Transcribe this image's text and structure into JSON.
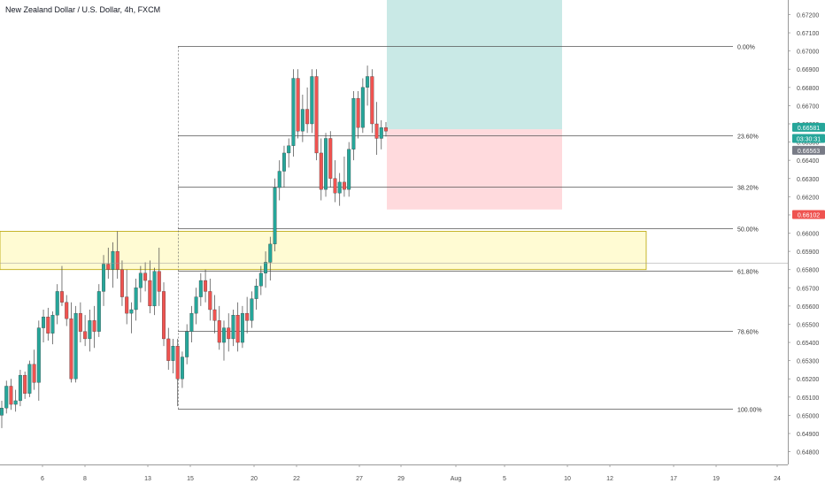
{
  "title": "New Zealand Dollar / U.S. Dollar, 4h, FXCM",
  "colors": {
    "up": "#26a69a",
    "down": "#ef5350",
    "fib_line": "#555555",
    "zone_fill": "#fff9c4",
    "zone_stroke": "#b8a400",
    "profit_fill": "#b2dfdb",
    "loss_fill": "#ffcdd2",
    "badge_green": "#26a69a",
    "badge_gray": "#787b86",
    "badge_red": "#ef5350",
    "axis_text": "#4a4a4a"
  },
  "chart_data": {
    "type": "candlestick",
    "symbol": "NZDUSD",
    "timeframe": "4h",
    "ylim": [
      0.6473,
      0.6728
    ],
    "y_ticks": [
      "0.67200",
      "0.67100",
      "0.67000",
      "0.66900",
      "0.66800",
      "0.66700",
      "0.66600",
      "0.66500",
      "0.66400",
      "0.66300",
      "0.66200",
      "0.66100",
      "0.66000",
      "0.65900",
      "0.65800",
      "0.65700",
      "0.65600",
      "0.65500",
      "0.65400",
      "0.65300",
      "0.65200",
      "0.65100",
      "0.65000",
      "0.64900",
      "0.64800"
    ],
    "x_ticks": [
      "6",
      "8",
      "13",
      "15",
      "20",
      "22",
      "27",
      "29",
      "Aug",
      "5",
      "10",
      "12",
      "17",
      "19",
      "24"
    ],
    "fib_levels": [
      {
        "label": "0.00%",
        "price": 0.67025
      },
      {
        "label": "23.60%",
        "price": 0.66535
      },
      {
        "label": "38.20%",
        "price": 0.66255
      },
      {
        "label": "50.00%",
        "price": 0.66025
      },
      {
        "label": "61.80%",
        "price": 0.65795
      },
      {
        "label": "78.60%",
        "price": 0.65465
      },
      {
        "label": "100.00%",
        "price": 0.65035
      }
    ],
    "zone": {
      "top": 0.6601,
      "bottom": 0.658
    },
    "position": {
      "target": 0.67335,
      "entry": 0.6657,
      "stop": 0.6613
    },
    "badges": [
      {
        "text": "0.66581",
        "kind": "green",
        "price": 0.66581
      },
      {
        "text": "03:30:31",
        "kind": "green",
        "price": 0.6652
      },
      {
        "text": "0.66563",
        "kind": "gray",
        "price": 0.66455
      },
      {
        "text": "0.66102",
        "kind": "red",
        "price": 0.66102
      }
    ],
    "candles": [
      {
        "o": 0.65,
        "h": 0.6508,
        "l": 0.6493,
        "c": 0.6504
      },
      {
        "o": 0.6504,
        "h": 0.6519,
        "l": 0.6501,
        "c": 0.6516
      },
      {
        "o": 0.6516,
        "h": 0.652,
        "l": 0.6503,
        "c": 0.6506
      },
      {
        "o": 0.6506,
        "h": 0.6514,
        "l": 0.6502,
        "c": 0.6508
      },
      {
        "o": 0.6508,
        "h": 0.6525,
        "l": 0.6505,
        "c": 0.6522
      },
      {
        "o": 0.6522,
        "h": 0.6524,
        "l": 0.6509,
        "c": 0.6512
      },
      {
        "o": 0.6512,
        "h": 0.653,
        "l": 0.651,
        "c": 0.6528
      },
      {
        "o": 0.6528,
        "h": 0.6536,
        "l": 0.6514,
        "c": 0.6518
      },
      {
        "o": 0.6518,
        "h": 0.6552,
        "l": 0.6508,
        "c": 0.6548
      },
      {
        "o": 0.6548,
        "h": 0.6558,
        "l": 0.654,
        "c": 0.6554
      },
      {
        "o": 0.6554,
        "h": 0.6559,
        "l": 0.6541,
        "c": 0.6545
      },
      {
        "o": 0.6545,
        "h": 0.6557,
        "l": 0.6539,
        "c": 0.6555
      },
      {
        "o": 0.6555,
        "h": 0.6572,
        "l": 0.655,
        "c": 0.6568
      },
      {
        "o": 0.6568,
        "h": 0.6582,
        "l": 0.656,
        "c": 0.6562
      },
      {
        "o": 0.6562,
        "h": 0.6566,
        "l": 0.6549,
        "c": 0.6553
      },
      {
        "o": 0.6553,
        "h": 0.6562,
        "l": 0.6518,
        "c": 0.652
      },
      {
        "o": 0.652,
        "h": 0.656,
        "l": 0.6518,
        "c": 0.6556
      },
      {
        "o": 0.6556,
        "h": 0.6562,
        "l": 0.654,
        "c": 0.6546
      },
      {
        "o": 0.6546,
        "h": 0.6555,
        "l": 0.6538,
        "c": 0.6542
      },
      {
        "o": 0.6542,
        "h": 0.6558,
        "l": 0.6535,
        "c": 0.6552
      },
      {
        "o": 0.6552,
        "h": 0.656,
        "l": 0.6537,
        "c": 0.6546
      },
      {
        "o": 0.6546,
        "h": 0.6572,
        "l": 0.6543,
        "c": 0.6568
      },
      {
        "o": 0.6568,
        "h": 0.6588,
        "l": 0.656,
        "c": 0.6583
      },
      {
        "o": 0.6583,
        "h": 0.6592,
        "l": 0.6575,
        "c": 0.658
      },
      {
        "o": 0.658,
        "h": 0.6595,
        "l": 0.657,
        "c": 0.659
      },
      {
        "o": 0.659,
        "h": 0.6601,
        "l": 0.6575,
        "c": 0.658
      },
      {
        "o": 0.658,
        "h": 0.6585,
        "l": 0.656,
        "c": 0.6565
      },
      {
        "o": 0.6565,
        "h": 0.658,
        "l": 0.655,
        "c": 0.6556
      },
      {
        "o": 0.6556,
        "h": 0.6562,
        "l": 0.6545,
        "c": 0.6558
      },
      {
        "o": 0.6558,
        "h": 0.6575,
        "l": 0.6552,
        "c": 0.657
      },
      {
        "o": 0.657,
        "h": 0.6582,
        "l": 0.6562,
        "c": 0.6578
      },
      {
        "o": 0.6578,
        "h": 0.6584,
        "l": 0.6568,
        "c": 0.6574
      },
      {
        "o": 0.6574,
        "h": 0.6585,
        "l": 0.6556,
        "c": 0.656
      },
      {
        "o": 0.656,
        "h": 0.6581,
        "l": 0.6555,
        "c": 0.6579
      },
      {
        "o": 0.6579,
        "h": 0.6592,
        "l": 0.656,
        "c": 0.6568
      },
      {
        "o": 0.6568,
        "h": 0.6573,
        "l": 0.6538,
        "c": 0.6542
      },
      {
        "o": 0.6542,
        "h": 0.6548,
        "l": 0.6525,
        "c": 0.653
      },
      {
        "o": 0.653,
        "h": 0.6542,
        "l": 0.6523,
        "c": 0.6538
      },
      {
        "o": 0.6538,
        "h": 0.6542,
        "l": 0.6505,
        "c": 0.652
      },
      {
        "o": 0.652,
        "h": 0.6535,
        "l": 0.6515,
        "c": 0.6532
      },
      {
        "o": 0.6532,
        "h": 0.655,
        "l": 0.6528,
        "c": 0.6546
      },
      {
        "o": 0.6546,
        "h": 0.656,
        "l": 0.654,
        "c": 0.6556
      },
      {
        "o": 0.6556,
        "h": 0.657,
        "l": 0.655,
        "c": 0.6565
      },
      {
        "o": 0.6565,
        "h": 0.6578,
        "l": 0.656,
        "c": 0.6574
      },
      {
        "o": 0.6574,
        "h": 0.658,
        "l": 0.6562,
        "c": 0.6568
      },
      {
        "o": 0.6568,
        "h": 0.6575,
        "l": 0.6552,
        "c": 0.6558
      },
      {
        "o": 0.6558,
        "h": 0.6566,
        "l": 0.6545,
        "c": 0.6552
      },
      {
        "o": 0.6552,
        "h": 0.656,
        "l": 0.6536,
        "c": 0.654
      },
      {
        "o": 0.654,
        "h": 0.6552,
        "l": 0.653,
        "c": 0.6548
      },
      {
        "o": 0.6548,
        "h": 0.6556,
        "l": 0.6535,
        "c": 0.6542
      },
      {
        "o": 0.6542,
        "h": 0.6558,
        "l": 0.6538,
        "c": 0.6555
      },
      {
        "o": 0.6555,
        "h": 0.6562,
        "l": 0.6535,
        "c": 0.654
      },
      {
        "o": 0.654,
        "h": 0.656,
        "l": 0.6537,
        "c": 0.6556
      },
      {
        "o": 0.6556,
        "h": 0.6565,
        "l": 0.6545,
        "c": 0.6552
      },
      {
        "o": 0.6552,
        "h": 0.6568,
        "l": 0.6548,
        "c": 0.6564
      },
      {
        "o": 0.6564,
        "h": 0.6575,
        "l": 0.6558,
        "c": 0.6571
      },
      {
        "o": 0.6571,
        "h": 0.6582,
        "l": 0.6566,
        "c": 0.6578
      },
      {
        "o": 0.6578,
        "h": 0.659,
        "l": 0.657,
        "c": 0.6584
      },
      {
        "o": 0.6584,
        "h": 0.6598,
        "l": 0.6574,
        "c": 0.6594
      },
      {
        "o": 0.6594,
        "h": 0.663,
        "l": 0.659,
        "c": 0.6625
      },
      {
        "o": 0.6625,
        "h": 0.664,
        "l": 0.6618,
        "c": 0.6634
      },
      {
        "o": 0.6634,
        "h": 0.6648,
        "l": 0.6625,
        "c": 0.6644
      },
      {
        "o": 0.6644,
        "h": 0.6652,
        "l": 0.6636,
        "c": 0.6648
      },
      {
        "o": 0.6648,
        "h": 0.669,
        "l": 0.6642,
        "c": 0.6685
      },
      {
        "o": 0.6685,
        "h": 0.669,
        "l": 0.6652,
        "c": 0.6656
      },
      {
        "o": 0.6656,
        "h": 0.6676,
        "l": 0.665,
        "c": 0.6668
      },
      {
        "o": 0.6668,
        "h": 0.668,
        "l": 0.6655,
        "c": 0.666
      },
      {
        "o": 0.666,
        "h": 0.669,
        "l": 0.6655,
        "c": 0.6686
      },
      {
        "o": 0.6686,
        "h": 0.669,
        "l": 0.664,
        "c": 0.6644
      },
      {
        "o": 0.6644,
        "h": 0.6652,
        "l": 0.6618,
        "c": 0.6624
      },
      {
        "o": 0.6624,
        "h": 0.6655,
        "l": 0.662,
        "c": 0.6652
      },
      {
        "o": 0.6652,
        "h": 0.6656,
        "l": 0.6625,
        "c": 0.663
      },
      {
        "o": 0.663,
        "h": 0.664,
        "l": 0.6617,
        "c": 0.6622
      },
      {
        "o": 0.6622,
        "h": 0.6633,
        "l": 0.6615,
        "c": 0.6628
      },
      {
        "o": 0.6628,
        "h": 0.6642,
        "l": 0.662,
        "c": 0.6624
      },
      {
        "o": 0.6624,
        "h": 0.665,
        "l": 0.662,
        "c": 0.6646
      },
      {
        "o": 0.6646,
        "h": 0.6678,
        "l": 0.664,
        "c": 0.6674
      },
      {
        "o": 0.6674,
        "h": 0.6678,
        "l": 0.6652,
        "c": 0.6658
      },
      {
        "o": 0.6658,
        "h": 0.6685,
        "l": 0.6655,
        "c": 0.668
      },
      {
        "o": 0.668,
        "h": 0.6692,
        "l": 0.667,
        "c": 0.6686
      },
      {
        "o": 0.6686,
        "h": 0.669,
        "l": 0.6655,
        "c": 0.666
      },
      {
        "o": 0.666,
        "h": 0.6672,
        "l": 0.6643,
        "c": 0.6652
      },
      {
        "o": 0.6652,
        "h": 0.6662,
        "l": 0.6646,
        "c": 0.6658
      },
      {
        "o": 0.6658,
        "h": 0.6661,
        "l": 0.6653,
        "c": 0.6656
      }
    ]
  }
}
